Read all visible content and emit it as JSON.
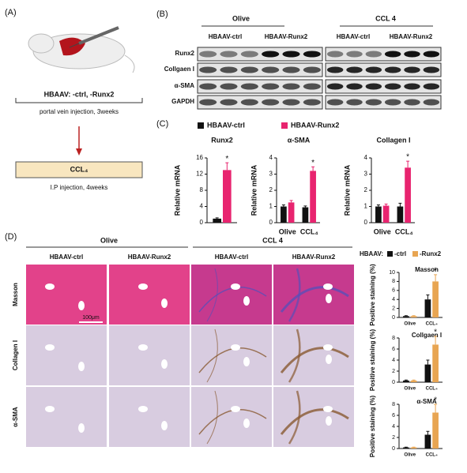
{
  "panel_labels": [
    "(A)",
    "(B)",
    "(C)",
    "(D)"
  ],
  "panel_a": {
    "treatment1": "HBAAV: -ctrl, -Runx2",
    "route1": "portal vein injection, 3weeks",
    "treatment2": "CCL₄",
    "route2": "I.P injection, 4weeks"
  },
  "panel_b": {
    "groups": [
      "Olive",
      "CCL 4"
    ],
    "subgroups": [
      "HBAAV-ctrl",
      "HBAAV-Runx2",
      "HBAAV-ctrl",
      "HBAAV-Runx2"
    ],
    "rows": [
      "Runx2",
      "Collgaen I",
      "α-SMA",
      "GAPDH"
    ]
  },
  "panel_c_legend": [
    "HBAAV-ctrl",
    "HBAAV-Runx2"
  ],
  "panel_d": {
    "groups": [
      "Olive",
      "CCL 4"
    ],
    "columns": [
      "HBAAV-ctrl",
      "HBAAV-Runx2",
      "HBAAV-ctrl",
      "HBAAV-Runx2"
    ],
    "rows": [
      "Masson",
      "Collagen I",
      "α-SMA"
    ],
    "scale_bar": "100μm",
    "legend_title": "HBAAV:",
    "legend": [
      "-ctrl",
      "-Runx2"
    ]
  },
  "chart_data": [
    {
      "type": "bar",
      "title": "Runx2",
      "ylabel": "Relative mRNA",
      "categories": [
        null
      ],
      "ylim": [
        0,
        16
      ],
      "yticks": [
        0,
        4,
        8,
        12,
        16
      ],
      "annotation": "*",
      "series": [
        {
          "name": "HBAAV-ctrl",
          "color": "#111111",
          "values": [
            1.0
          ],
          "errors": [
            0.2
          ]
        },
        {
          "name": "HBAAV-Runx2",
          "color": "#e8246f",
          "values": [
            13.0
          ],
          "errors": [
            1.8
          ]
        }
      ]
    },
    {
      "type": "bar",
      "title": "α-SMA",
      "ylabel": "Relative mRNA",
      "categories": [
        "Olive",
        "CCL₄"
      ],
      "ylim": [
        0,
        4
      ],
      "yticks": [
        0,
        1,
        2,
        3,
        4
      ],
      "annotation": "*",
      "series": [
        {
          "name": "HBAAV-ctrl",
          "color": "#111111",
          "values": [
            1.0,
            0.95
          ],
          "errors": [
            0.1,
            0.08
          ]
        },
        {
          "name": "HBAAV-Runx2",
          "color": "#e8246f",
          "values": [
            1.25,
            3.2
          ],
          "errors": [
            0.12,
            0.25
          ]
        }
      ]
    },
    {
      "type": "bar",
      "title": "Collagen I",
      "ylabel": "Relative mRNA",
      "categories": [
        "Olive",
        "CCL₄"
      ],
      "ylim": [
        0,
        4
      ],
      "yticks": [
        0,
        1,
        2,
        3,
        4
      ],
      "annotation": "*",
      "series": [
        {
          "name": "HBAAV-ctrl",
          "color": "#111111",
          "values": [
            1.0,
            1.0
          ],
          "errors": [
            0.1,
            0.2
          ]
        },
        {
          "name": "HBAAV-Runx2",
          "color": "#e8246f",
          "values": [
            1.05,
            3.4
          ],
          "errors": [
            0.1,
            0.4
          ]
        }
      ]
    },
    {
      "type": "bar",
      "title": "Masson",
      "ylabel": "Positive staining (%)",
      "categories": [
        "Olive",
        "CCL₄"
      ],
      "ylim": [
        0,
        10
      ],
      "yticks": [
        0,
        2,
        4,
        6,
        8,
        10
      ],
      "annotation": "*",
      "series": [
        {
          "name": "-ctrl",
          "color": "#111111",
          "values": [
            0.3,
            4.0
          ],
          "errors": [
            0.1,
            1.0
          ]
        },
        {
          "name": "-Runx2",
          "color": "#e8a552",
          "values": [
            0.3,
            8.0
          ],
          "errors": [
            0.1,
            1.5
          ]
        }
      ]
    },
    {
      "type": "bar",
      "title": "Collgaen I",
      "ylabel": "Positive staining (%)",
      "categories": [
        "Olive",
        "CCL₄"
      ],
      "ylim": [
        0,
        8
      ],
      "yticks": [
        0,
        2,
        4,
        6,
        8
      ],
      "annotation": "*",
      "series": [
        {
          "name": "-ctrl",
          "color": "#111111",
          "values": [
            0.3,
            3.2
          ],
          "errors": [
            0.1,
            0.8
          ]
        },
        {
          "name": "-Runx2",
          "color": "#e8a552",
          "values": [
            0.3,
            6.8
          ],
          "errors": [
            0.1,
            1.5
          ]
        }
      ]
    },
    {
      "type": "bar",
      "title": "α-SMA",
      "ylabel": "Positive staining (%)",
      "categories": [
        "Olive",
        "CCL₄"
      ],
      "ylim": [
        0,
        8
      ],
      "yticks": [
        0,
        2,
        4,
        6,
        8
      ],
      "annotation": "*",
      "series": [
        {
          "name": "-ctrl",
          "color": "#111111",
          "values": [
            0.2,
            2.5
          ],
          "errors": [
            0.05,
            0.6
          ]
        },
        {
          "name": "-Runx2",
          "color": "#e8a552",
          "values": [
            0.2,
            6.5
          ],
          "errors": [
            0.05,
            1.5
          ]
        }
      ]
    }
  ]
}
